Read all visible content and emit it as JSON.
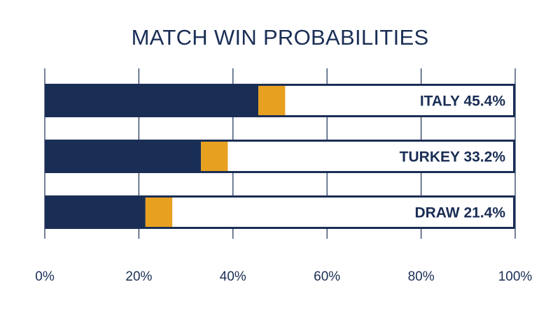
{
  "chart_data": {
    "type": "bar",
    "orientation": "horizontal",
    "stacked": false,
    "title": "MATCH WIN PROBABILITIES",
    "xlabel": "",
    "ylabel": "",
    "xlim": [
      0,
      100
    ],
    "x_ticks": [
      "0%",
      "20%",
      "40%",
      "60%",
      "80%",
      "100%"
    ],
    "grid": "vertical",
    "legend": "none",
    "categories": [
      "ITALY",
      "TURKEY",
      "DRAW"
    ],
    "values": [
      45.4,
      33.2,
      21.4
    ],
    "labels": [
      "ITALY 45.4%",
      "TURKEY 33.2%",
      "DRAW 21.4%"
    ],
    "highlight_segment_width": 5.7,
    "colors": {
      "bar": "#1a2e55",
      "highlight": "#e8a020",
      "track": "#ffffff",
      "border": "#1a2e55",
      "grid": "#1a2e55",
      "text": "#1a2e55"
    }
  }
}
